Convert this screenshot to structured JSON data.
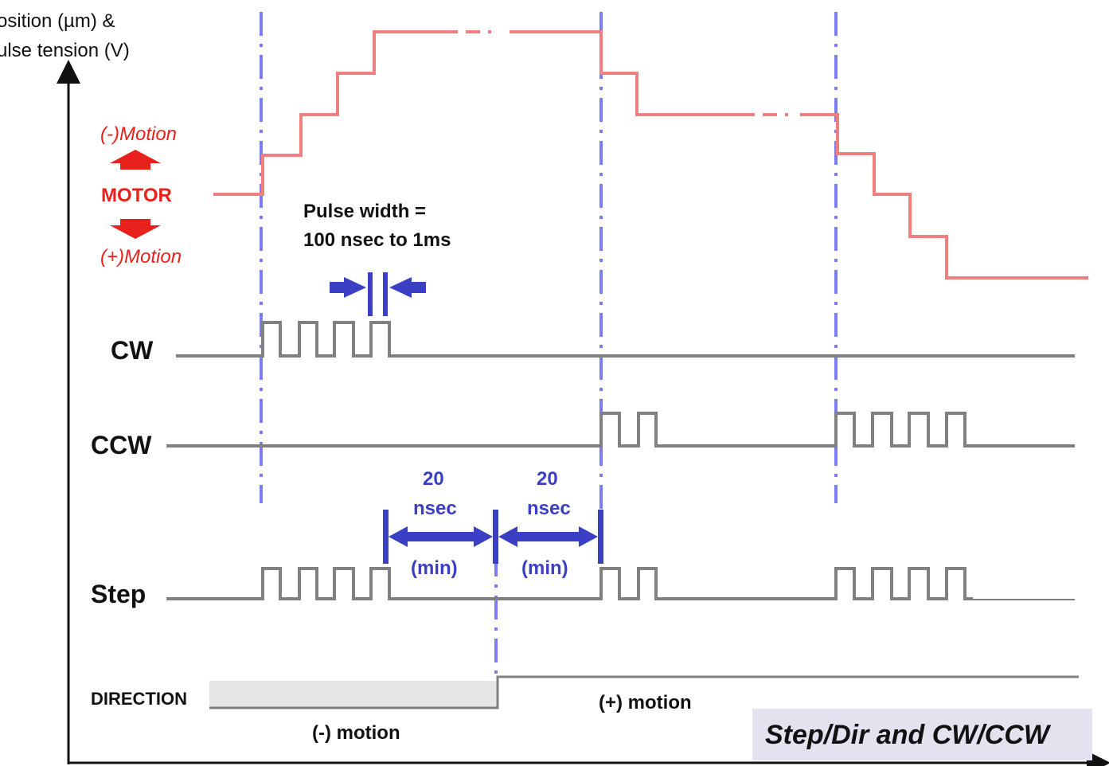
{
  "y_axis_label": [
    "osition (µm) &",
    "ulse tension (V)"
  ],
  "motor": {
    "minus_motion": "(-)Motion",
    "label": "MOTOR",
    "plus_motion": "(+)Motion"
  },
  "pulse_width": [
    "Pulse width =",
    "100 nsec to 1ms"
  ],
  "signals": {
    "cw": "CW",
    "ccw": "CCW",
    "step": "Step",
    "direction": "DIRECTION"
  },
  "setup_times": [
    {
      "value": "20",
      "unit": "nsec",
      "note": "(min)"
    },
    {
      "value": "20",
      "unit": "nsec",
      "note": "(min)"
    }
  ],
  "motion_labels": {
    "minus": "(-) motion",
    "plus": "(+) motion"
  },
  "title": "Step/Dir and CW/CCW",
  "colors": {
    "position_line": "#f08080",
    "signal_line": "#808080",
    "guide_line": "#7a7ef0",
    "annotation": "#3b3fc4",
    "motor_text": "#e8211c",
    "direction_fill": "#e6e6e6",
    "title_bg": "#e6e1ee"
  }
}
